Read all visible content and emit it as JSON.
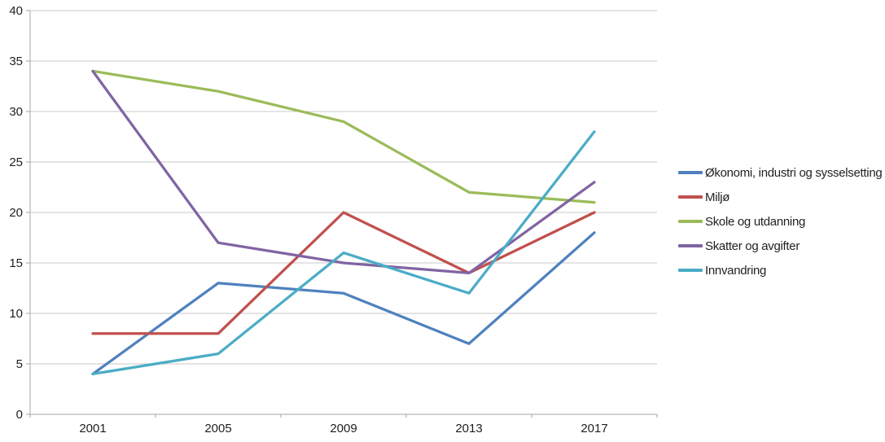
{
  "chart_data": {
    "type": "line",
    "title": "",
    "xlabel": "",
    "ylabel": "",
    "categories": [
      "2001",
      "2005",
      "2009",
      "2013",
      "2017"
    ],
    "series": [
      {
        "name": "Økonomi, industri og sysselsetting",
        "color": "#4F81BD",
        "values": [
          4,
          13,
          12,
          7,
          18
        ]
      },
      {
        "name": "Miljø",
        "color": "#C0504D",
        "values": [
          8,
          8,
          20,
          14,
          20
        ]
      },
      {
        "name": "Skole og utdanning",
        "color": "#9BBB59",
        "values": [
          34,
          32,
          29,
          22,
          21
        ]
      },
      {
        "name": "Skatter og avgifter",
        "color": "#8064A2",
        "values": [
          34,
          17,
          15,
          14,
          23
        ]
      },
      {
        "name": "Innvandring",
        "color": "#4BACC6",
        "values": [
          4,
          6,
          16,
          12,
          28
        ]
      }
    ],
    "ylim": [
      0,
      40
    ],
    "ytick_step": 5,
    "y_tick_labels": [
      "0",
      "5",
      "10",
      "15",
      "20",
      "25",
      "30",
      "35",
      "40"
    ],
    "grid": "horizontal",
    "legend_position": "right",
    "grid_color": "#c8c8c8",
    "axis_color": "#a6a6a6"
  }
}
